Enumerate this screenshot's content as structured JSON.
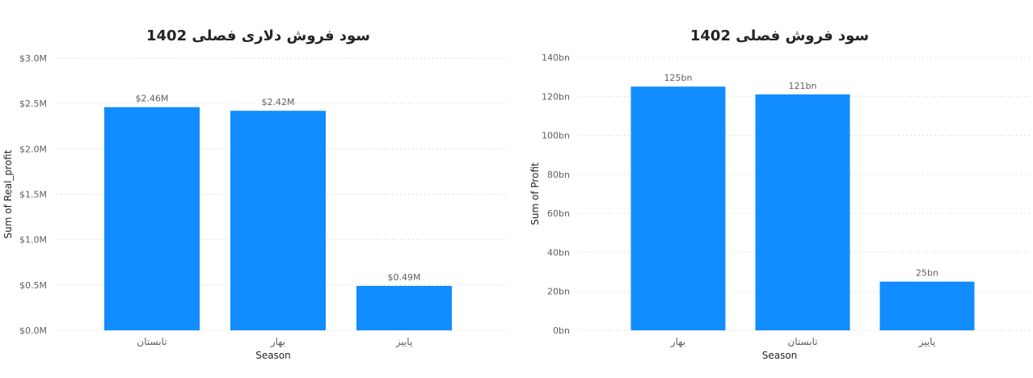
{
  "chart_data": [
    {
      "type": "bar",
      "title": "سود فروش دلاری فصلی 1402",
      "xlabel": "Season",
      "ylabel": "Sum of Real_profit",
      "categories": [
        "تابستان",
        "بهار",
        "پاییز"
      ],
      "values": [
        2.46,
        2.42,
        0.49
      ],
      "value_unit": "M",
      "data_labels": [
        "$2.46M",
        "$2.42M",
        "$0.49M"
      ],
      "yticks": [
        0,
        0.5,
        1.0,
        1.5,
        2.0,
        2.5,
        3.0
      ],
      "ytick_labels": [
        "$0.0M",
        "$0.5M",
        "$1.0M",
        "$1.5M",
        "$2.0M",
        "$2.5M",
        "$3.0M"
      ],
      "ylim": [
        0,
        3.0
      ],
      "grid": true,
      "color": "#118dff"
    },
    {
      "type": "bar",
      "title": "سود فروش فصلی 1402",
      "xlabel": "Season",
      "ylabel": "Sum of Profit",
      "categories": [
        "بهار",
        "تابستان",
        "پاییز"
      ],
      "values": [
        125,
        121,
        25
      ],
      "value_unit": "bn",
      "data_labels": [
        "125bn",
        "121bn",
        "25bn"
      ],
      "yticks": [
        0,
        20,
        40,
        60,
        80,
        100,
        120,
        140
      ],
      "ytick_labels": [
        "0bn",
        "20bn",
        "40bn",
        "60bn",
        "80bn",
        "100bn",
        "120bn",
        "140bn"
      ],
      "ylim": [
        0,
        140
      ],
      "grid": true,
      "color": "#118dff"
    }
  ]
}
